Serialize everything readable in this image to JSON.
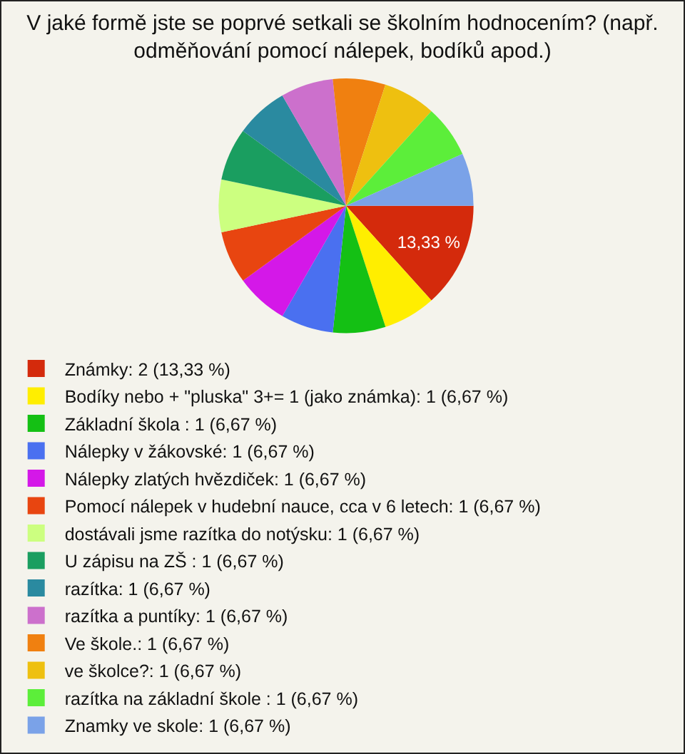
{
  "chart_data": {
    "type": "pie",
    "title": "V jaké formě jste se poprvé setkali se školním hodnocením? (např. odměňování pomocí nálepek, bodíků apod.)",
    "categories": [
      "Známky: 2 (13,33 %)",
      "Bodíky nebo + \"pluska\" 3+= 1 (jako známka): 1 (6,67 %)",
      "Základní škola : 1 (6,67 %)",
      "Nálepky v žákovské: 1 (6,67 %)",
      "Nálepky zlatých hvězdiček: 1 (6,67 %)",
      "Pomocí nálepek v hudební nauce, cca v 6 letech: 1 (6,67 %)",
      "dostávali jsme razítka do notýsku: 1 (6,67 %)",
      "U zápisu na ZŠ : 1 (6,67 %)",
      "razítka: 1 (6,67 %)",
      "razítka a puntíky: 1 (6,67 %)",
      "Ve škole.: 1 (6,67 %)",
      "ve školce?: 1 (6,67 %)",
      "razítka na základní škole : 1 (6,67 %)",
      "Znamky ve skole: 1 (6,67 %)"
    ],
    "values": [
      13.33,
      6.67,
      6.67,
      6.67,
      6.67,
      6.67,
      6.67,
      6.67,
      6.67,
      6.67,
      6.67,
      6.67,
      6.67,
      6.67
    ],
    "colors": [
      "#d42a0c",
      "#ffee00",
      "#14c014",
      "#4a70f0",
      "#d418e8",
      "#e84510",
      "#ccff80",
      "#1a9e60",
      "#2a8aa0",
      "#cc70cc",
      "#f08010",
      "#eec010",
      "#5cee3a",
      "#7aa2e8"
    ],
    "value_labels": [
      "13,33 %",
      null,
      null,
      null,
      null,
      null,
      null,
      null,
      null,
      null,
      null,
      null,
      null,
      null
    ],
    "legend": "bottom"
  }
}
